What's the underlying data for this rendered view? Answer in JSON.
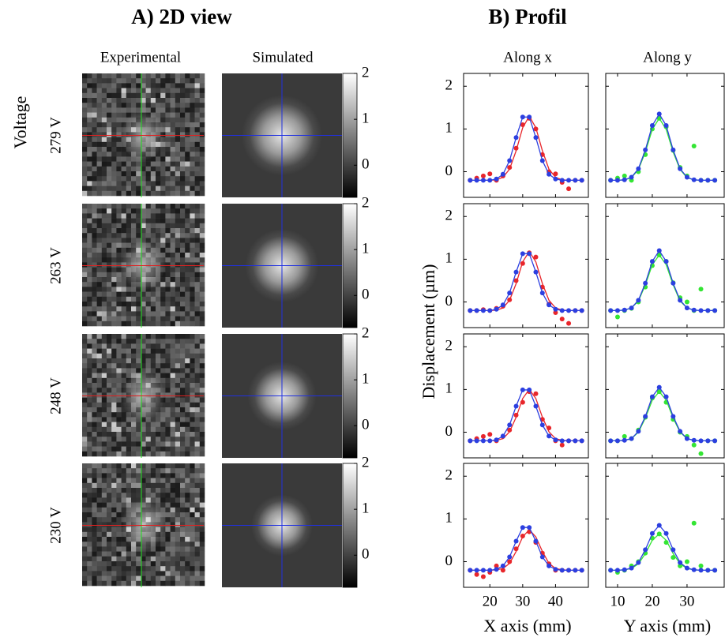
{
  "view2d": {
    "title": "A) 2D view",
    "columns": [
      "Experimental",
      "Simulated"
    ],
    "row_label": "Voltage",
    "rows": [
      "279 V",
      "263 V",
      "248 V",
      "230 V"
    ],
    "colorbar": {
      "lim": [
        -0.7,
        2
      ],
      "ticks": [
        0,
        1,
        2
      ]
    }
  },
  "profile": {
    "title": "B) Profil",
    "columns": [
      "Along x",
      "Along y"
    ],
    "y_label": "Displacement (µm)",
    "x_labels": [
      "X axis (mm)",
      "Y axis (mm)"
    ]
  },
  "chart_data": [
    {
      "type": "line",
      "x": [
        14,
        16,
        18,
        20,
        22,
        24,
        26,
        28,
        30,
        32,
        34,
        36,
        38,
        40,
        42,
        44,
        46,
        48
      ],
      "xlim": [
        12,
        50
      ],
      "xticks": [
        20,
        30,
        40
      ],
      "ylim": [
        -0.6,
        2.3
      ],
      "yticks": [
        0,
        1,
        2
      ],
      "series": [
        {
          "color": "#e8262b",
          "mode": "markers",
          "values": [
            -0.2,
            -0.15,
            -0.1,
            -0.05,
            -0.2,
            -0.1,
            0.1,
            0.55,
            1.1,
            1.25,
            1.0,
            0.4,
            0.0,
            -0.05,
            -0.25,
            -0.4,
            -0.2,
            -0.2
          ]
        },
        {
          "color": "#e8262b",
          "mode": "line",
          "values": [
            -0.2,
            -0.2,
            -0.2,
            -0.2,
            -0.19,
            -0.13,
            0.06,
            0.49,
            1.03,
            1.3,
            1.03,
            0.49,
            0.06,
            -0.13,
            -0.19,
            -0.2,
            -0.2,
            -0.2
          ]
        },
        {
          "color": "#2c3fe0",
          "mode": "lines+markers",
          "values": [
            -0.2,
            -0.2,
            -0.2,
            -0.2,
            -0.17,
            -0.06,
            0.26,
            0.8,
            1.28,
            1.28,
            0.8,
            0.26,
            -0.06,
            -0.17,
            -0.2,
            -0.2,
            -0.2,
            -0.2
          ]
        }
      ]
    },
    {
      "type": "line",
      "x": [
        8,
        10,
        12,
        14,
        16,
        18,
        20,
        22,
        24,
        26,
        28,
        30,
        32,
        34,
        36,
        38
      ],
      "xlim": [
        6.6,
        40.7
      ],
      "xticks": [
        10,
        20,
        30
      ],
      "ylim": [
        -0.6,
        2.3
      ],
      "yticks": [
        0,
        1,
        2
      ],
      "series": [
        {
          "color": "#34e534",
          "mode": "markers",
          "values": [
            -0.2,
            -0.15,
            -0.1,
            -0.2,
            0.0,
            0.4,
            1.0,
            1.25,
            1.05,
            0.5,
            0.1,
            -0.1,
            0.6,
            -0.2,
            -0.2,
            -0.2
          ]
        },
        {
          "color": "#34e534",
          "mode": "line",
          "values": [
            -0.2,
            -0.2,
            -0.19,
            -0.14,
            0.05,
            0.46,
            0.99,
            1.25,
            0.99,
            0.46,
            0.05,
            -0.14,
            -0.19,
            -0.2,
            -0.2,
            -0.2
          ]
        },
        {
          "color": "#2c3fe0",
          "mode": "lines+markers",
          "values": [
            -0.2,
            -0.2,
            -0.19,
            -0.13,
            0.07,
            0.51,
            1.08,
            1.35,
            1.08,
            0.51,
            0.07,
            -0.13,
            -0.19,
            -0.2,
            -0.2,
            -0.2
          ]
        }
      ]
    },
    {
      "type": "line",
      "x": [
        14,
        16,
        18,
        20,
        22,
        24,
        26,
        28,
        30,
        32,
        34,
        36,
        38,
        40,
        42,
        44,
        46,
        48
      ],
      "xlim": [
        12,
        50
      ],
      "xticks": [
        20,
        30,
        40
      ],
      "ylim": [
        -0.6,
        2.3
      ],
      "yticks": [
        0,
        1,
        2
      ],
      "series": [
        {
          "color": "#e8262b",
          "mode": "markers",
          "values": [
            -0.2,
            -0.2,
            -0.18,
            -0.2,
            -0.15,
            -0.1,
            0.05,
            0.5,
            0.9,
            1.15,
            1.05,
            0.35,
            -0.05,
            -0.25,
            -0.4,
            -0.5,
            -0.2,
            -0.2
          ]
        },
        {
          "color": "#e8262b",
          "mode": "line",
          "values": [
            -0.2,
            -0.2,
            -0.2,
            -0.2,
            -0.19,
            -0.14,
            0.04,
            0.43,
            0.94,
            1.18,
            0.94,
            0.43,
            0.04,
            -0.14,
            -0.19,
            -0.2,
            -0.2,
            -0.2
          ]
        },
        {
          "color": "#2c3fe0",
          "mode": "lines+markers",
          "values": [
            -0.2,
            -0.2,
            -0.2,
            -0.2,
            -0.17,
            -0.07,
            0.21,
            0.7,
            1.13,
            1.13,
            0.7,
            0.21,
            -0.07,
            -0.17,
            -0.2,
            -0.2,
            -0.2,
            -0.2
          ]
        }
      ]
    },
    {
      "type": "line",
      "x": [
        8,
        10,
        12,
        14,
        16,
        18,
        20,
        22,
        24,
        26,
        28,
        30,
        32,
        34,
        36,
        38
      ],
      "xlim": [
        6.6,
        40.7
      ],
      "xticks": [
        10,
        20,
        30
      ],
      "ylim": [
        -0.6,
        2.3
      ],
      "yticks": [
        0,
        1,
        2
      ],
      "series": [
        {
          "color": "#34e534",
          "mode": "markers",
          "values": [
            -0.2,
            -0.35,
            -0.2,
            -0.15,
            0.0,
            0.35,
            0.85,
            1.1,
            0.95,
            0.45,
            0.1,
            0.0,
            -0.2,
            0.3,
            -0.2,
            -0.2
          ]
        },
        {
          "color": "#34e534",
          "mode": "line",
          "values": [
            -0.2,
            -0.2,
            -0.19,
            -0.14,
            0.02,
            0.4,
            0.87,
            1.1,
            0.87,
            0.4,
            0.02,
            -0.14,
            -0.19,
            -0.2,
            -0.2,
            -0.2
          ]
        },
        {
          "color": "#2c3fe0",
          "mode": "lines+markers",
          "values": [
            -0.2,
            -0.2,
            -0.19,
            -0.14,
            0.04,
            0.44,
            0.95,
            1.2,
            0.95,
            0.44,
            0.04,
            -0.14,
            -0.19,
            -0.2,
            -0.2,
            -0.2
          ]
        }
      ]
    },
    {
      "type": "line",
      "x": [
        14,
        16,
        18,
        20,
        22,
        24,
        26,
        28,
        30,
        32,
        34,
        36,
        38,
        40,
        42,
        44,
        46,
        48
      ],
      "xlim": [
        12,
        50
      ],
      "xticks": [
        20,
        30,
        40
      ],
      "ylim": [
        -0.6,
        2.3
      ],
      "yticks": [
        0,
        1,
        2
      ],
      "series": [
        {
          "color": "#e8262b",
          "mode": "markers",
          "values": [
            -0.2,
            -0.15,
            -0.1,
            -0.05,
            -0.2,
            -0.1,
            0.05,
            0.4,
            0.7,
            0.95,
            0.9,
            0.3,
            0.1,
            -0.2,
            -0.3,
            -0.2,
            -0.2,
            -0.2
          ]
        },
        {
          "color": "#e8262b",
          "mode": "line",
          "values": [
            -0.2,
            -0.2,
            -0.2,
            -0.2,
            -0.19,
            -0.15,
            0.01,
            0.35,
            0.79,
            1.0,
            0.79,
            0.35,
            0.01,
            -0.15,
            -0.19,
            -0.2,
            -0.2,
            -0.2
          ]
        },
        {
          "color": "#2c3fe0",
          "mode": "lines+markers",
          "values": [
            -0.2,
            -0.2,
            -0.2,
            -0.2,
            -0.18,
            -0.09,
            0.17,
            0.61,
            0.99,
            0.99,
            0.61,
            0.17,
            -0.09,
            -0.18,
            -0.2,
            -0.2,
            -0.2,
            -0.2
          ]
        }
      ]
    },
    {
      "type": "line",
      "x": [
        8,
        10,
        12,
        14,
        16,
        18,
        20,
        22,
        24,
        26,
        28,
        30,
        32,
        34,
        36,
        38
      ],
      "xlim": [
        6.6,
        40.7
      ],
      "xticks": [
        10,
        20,
        30
      ],
      "ylim": [
        -0.6,
        2.3
      ],
      "yticks": [
        0,
        1,
        2
      ],
      "series": [
        {
          "color": "#34e534",
          "mode": "markers",
          "values": [
            -0.2,
            -0.2,
            -0.1,
            -0.15,
            0.05,
            0.35,
            0.8,
            0.95,
            0.7,
            0.3,
            0.0,
            -0.1,
            -0.3,
            -0.5,
            -0.2,
            -0.2
          ]
        },
        {
          "color": "#34e534",
          "mode": "line",
          "values": [
            -0.2,
            -0.2,
            -0.19,
            -0.15,
            0.0,
            0.33,
            0.75,
            0.95,
            0.75,
            0.33,
            0.0,
            -0.15,
            -0.19,
            -0.2,
            -0.2,
            -0.2
          ]
        },
        {
          "color": "#2c3fe0",
          "mode": "lines+markers",
          "values": [
            -0.2,
            -0.2,
            -0.19,
            -0.15,
            0.02,
            0.37,
            0.83,
            1.05,
            0.83,
            0.37,
            0.02,
            -0.15,
            -0.19,
            -0.2,
            -0.2,
            -0.2
          ]
        }
      ]
    },
    {
      "type": "line",
      "x": [
        14,
        16,
        18,
        20,
        22,
        24,
        26,
        28,
        30,
        32,
        34,
        36,
        38,
        40,
        42,
        44,
        46,
        48
      ],
      "xlim": [
        12,
        50
      ],
      "xticks": [
        20,
        30,
        40
      ],
      "ylim": [
        -0.6,
        2.3
      ],
      "yticks": [
        0,
        1,
        2
      ],
      "series": [
        {
          "color": "#e8262b",
          "mode": "markers",
          "values": [
            -0.2,
            -0.3,
            -0.35,
            -0.25,
            -0.1,
            -0.2,
            0.0,
            0.3,
            0.6,
            0.7,
            0.45,
            0.2,
            -0.05,
            -0.2,
            -0.2,
            -0.2,
            -0.2,
            -0.2
          ]
        },
        {
          "color": "#e8262b",
          "mode": "line",
          "values": [
            -0.2,
            -0.2,
            -0.2,
            -0.2,
            -0.19,
            -0.16,
            -0.04,
            0.24,
            0.58,
            0.75,
            0.58,
            0.24,
            -0.04,
            -0.16,
            -0.19,
            -0.2,
            -0.2,
            -0.2
          ]
        },
        {
          "color": "#2c3fe0",
          "mode": "lines+markers",
          "values": [
            -0.2,
            -0.2,
            -0.2,
            -0.2,
            -0.18,
            -0.1,
            0.11,
            0.48,
            0.8,
            0.8,
            0.48,
            0.11,
            -0.1,
            -0.18,
            -0.2,
            -0.2,
            -0.2,
            -0.2
          ]
        }
      ]
    },
    {
      "type": "line",
      "x": [
        8,
        10,
        12,
        14,
        16,
        18,
        20,
        22,
        24,
        26,
        28,
        30,
        32,
        34,
        36,
        38
      ],
      "xlim": [
        6.6,
        40.7
      ],
      "xticks": [
        10,
        20,
        30
      ],
      "ylim": [
        -0.6,
        2.3
      ],
      "yticks": [
        0,
        1,
        2
      ],
      "series": [
        {
          "color": "#34e534",
          "mode": "markers",
          "values": [
            -0.2,
            -0.25,
            -0.2,
            -0.1,
            0.0,
            0.2,
            0.55,
            0.65,
            0.45,
            0.1,
            -0.1,
            0.0,
            0.9,
            -0.1,
            -0.2,
            -0.2
          ]
        },
        {
          "color": "#34e534",
          "mode": "line",
          "values": [
            -0.2,
            -0.2,
            -0.19,
            -0.16,
            -0.05,
            0.19,
            0.5,
            0.65,
            0.5,
            0.19,
            -0.05,
            -0.16,
            -0.19,
            -0.2,
            -0.2,
            -0.2
          ]
        },
        {
          "color": "#2c3fe0",
          "mode": "lines+markers",
          "values": [
            -0.2,
            -0.2,
            -0.19,
            -0.15,
            -0.02,
            0.28,
            0.66,
            0.85,
            0.66,
            0.28,
            -0.02,
            -0.15,
            -0.19,
            -0.2,
            -0.2,
            -0.2
          ]
        }
      ]
    }
  ]
}
